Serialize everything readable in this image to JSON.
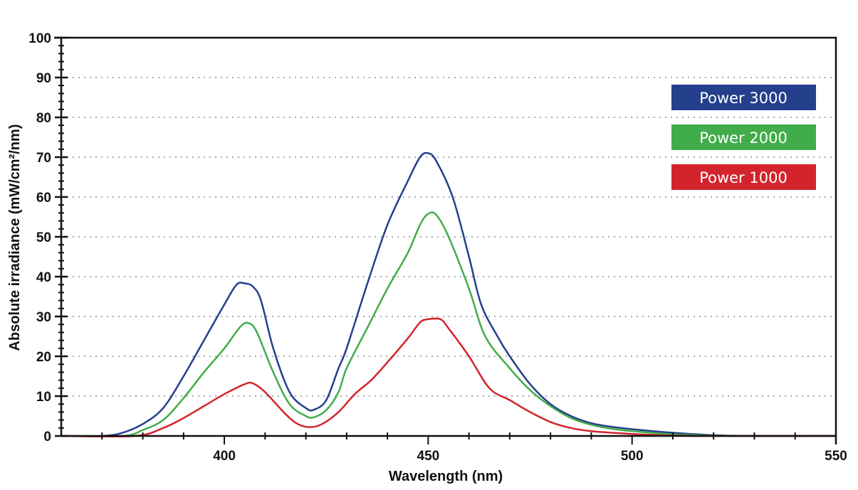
{
  "chart_data": {
    "type": "line",
    "title": "",
    "xlabel": "Wavelength (nm)",
    "ylabel": "Absolute irradiance (mW/cm²/nm)",
    "xlim": [
      360,
      550
    ],
    "ylim": [
      0,
      100
    ],
    "xticks": [
      400,
      450,
      500,
      550
    ],
    "yticks": [
      0,
      10,
      20,
      30,
      40,
      50,
      60,
      70,
      80,
      90,
      100
    ],
    "grid": "horizontal dotted",
    "legend_position": "top-right",
    "series": [
      {
        "name": "Power 3000",
        "color": "#243f8c",
        "x": [
          360,
          370,
          375,
          380,
          385,
          390,
          395,
          400,
          403,
          405,
          407,
          409,
          412,
          416,
          420,
          422,
          425,
          428,
          430,
          435,
          440,
          445,
          448,
          450,
          452,
          456,
          460,
          463,
          467,
          470,
          475,
          480,
          485,
          490,
          495,
          500,
          510,
          520,
          530,
          550
        ],
        "y": [
          0,
          0,
          0.8,
          3,
          7,
          15,
          24,
          33,
          38,
          38.3,
          37.5,
          34,
          22,
          11,
          7,
          6.6,
          9,
          17,
          22,
          38,
          53,
          64,
          70,
          71,
          69,
          60,
          45,
          33,
          25,
          20,
          13,
          8,
          5,
          3.2,
          2.3,
          1.7,
          0.8,
          0.2,
          0,
          0
        ]
      },
      {
        "name": "Power 2000",
        "color": "#41ad4a",
        "x": [
          360,
          375,
          380,
          385,
          390,
          395,
          400,
          404,
          406,
          408,
          412,
          416,
          420,
          422,
          425,
          428,
          430,
          435,
          440,
          445,
          448,
          450,
          452,
          455,
          460,
          464,
          470,
          475,
          480,
          485,
          490,
          495,
          500,
          510,
          520,
          530,
          550
        ],
        "y": [
          0,
          0,
          1.5,
          4,
          9.5,
          16,
          22,
          27.5,
          28.3,
          26,
          16,
          8,
          5,
          4.7,
          6.5,
          11,
          17,
          27,
          37,
          46,
          53,
          55.8,
          55.5,
          50,
          37,
          25,
          17,
          11.5,
          7.5,
          4.5,
          2.8,
          1.8,
          1.2,
          0.4,
          0.1,
          0,
          0
        ]
      },
      {
        "name": "Power 1000",
        "color": "#d3242b",
        "x": [
          360,
          378,
          385,
          390,
          395,
          400,
          405,
          407,
          410,
          415,
          418,
          421,
          424,
          428,
          432,
          436,
          440,
          445,
          448,
          450,
          453,
          455,
          460,
          465,
          470,
          475,
          480,
          485,
          490,
          500,
          510,
          520,
          550
        ],
        "y": [
          0,
          0,
          2,
          4.5,
          7.5,
          10.5,
          13,
          13.2,
          11,
          5.5,
          3,
          2.2,
          3,
          6,
          10.5,
          14,
          18.5,
          24.5,
          28.5,
          29.3,
          29.3,
          27,
          20,
          12,
          9,
          6,
          3.5,
          2,
          1.2,
          0.5,
          0.1,
          0,
          0
        ]
      }
    ]
  }
}
